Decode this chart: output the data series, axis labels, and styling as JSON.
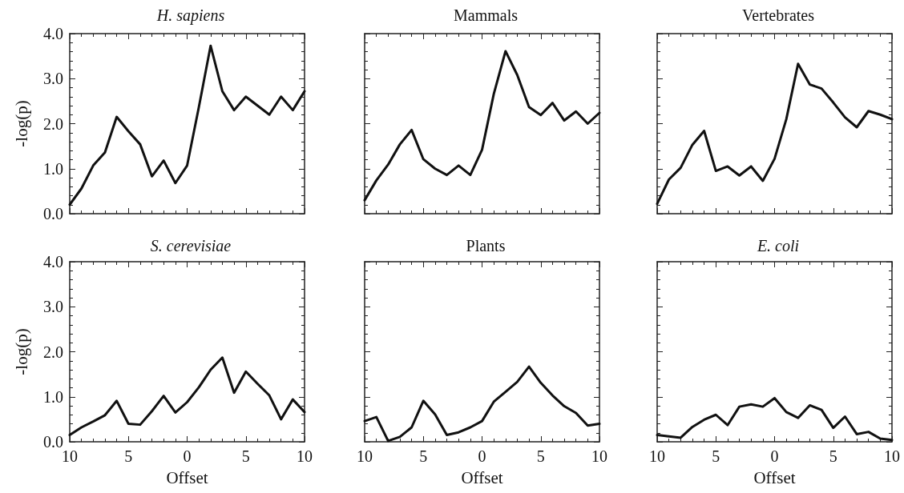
{
  "chart_data": [
    {
      "type": "line",
      "title": "H. sapiens",
      "ylabel": "-log(p)",
      "x": [
        -10,
        -9,
        -8,
        -7,
        -6,
        -5,
        -4,
        -3,
        -2,
        -1,
        0,
        1,
        2,
        3,
        4,
        5,
        6,
        7,
        8,
        9,
        10
      ],
      "series": [
        {
          "color": "#111111",
          "values": [
            0.2,
            0.56,
            1.07,
            1.36,
            2.15,
            1.83,
            1.54,
            0.83,
            1.18,
            0.68,
            1.07,
            2.37,
            3.73,
            2.72,
            2.3,
            2.6,
            2.4,
            2.2,
            2.6,
            2.3,
            2.72
          ]
        }
      ],
      "xlim": [
        -10,
        10
      ],
      "xticks": [
        {
          "value": -10,
          "label": null
        },
        {
          "value": -5,
          "label": null
        },
        {
          "value": 0,
          "label": null
        },
        {
          "value": 5,
          "label": null
        },
        {
          "value": 10,
          "label": null
        }
      ],
      "ylim": [
        0,
        4
      ],
      "yticks": [
        {
          "value": 0,
          "label": "0.0"
        },
        {
          "value": 1,
          "label": "1.0"
        },
        {
          "value": 2,
          "label": "2.0"
        },
        {
          "value": 3,
          "label": "3.0"
        },
        {
          "value": 4,
          "label": "4.0"
        }
      ],
      "tick_labels": "y",
      "marker": "none",
      "line_style": "solid"
    },
    {
      "type": "line",
      "title": "Mammals",
      "x": [
        -10,
        -9,
        -8,
        -7,
        -6,
        -5,
        -4,
        -3,
        -2,
        -1,
        0,
        1,
        2,
        3,
        4,
        5,
        6,
        7,
        8,
        9,
        10
      ],
      "series": [
        {
          "color": "#111111",
          "values": [
            0.3,
            0.74,
            1.09,
            1.54,
            1.86,
            1.21,
            1.0,
            0.86,
            1.07,
            0.86,
            1.42,
            2.66,
            3.61,
            3.08,
            2.37,
            2.19,
            2.46,
            2.07,
            2.27,
            2.0,
            2.24
          ]
        }
      ],
      "xlim": [
        -10,
        10
      ],
      "xticks": [
        {
          "value": -10,
          "label": null
        },
        {
          "value": -5,
          "label": null
        },
        {
          "value": 0,
          "label": null
        },
        {
          "value": 5,
          "label": null
        },
        {
          "value": 10,
          "label": null
        }
      ],
      "ylim": [
        0,
        4
      ],
      "yticks": [
        {
          "value": 0,
          "label": null
        },
        {
          "value": 1,
          "label": null
        },
        {
          "value": 2,
          "label": null
        },
        {
          "value": 3,
          "label": null
        },
        {
          "value": 4,
          "label": null
        }
      ],
      "tick_labels": false,
      "marker": "none",
      "line_style": "solid"
    },
    {
      "type": "line",
      "title": "Vertebrates",
      "x": [
        -10,
        -9,
        -8,
        -7,
        -6,
        -5,
        -4,
        -3,
        -2,
        -1,
        0,
        1,
        2,
        3,
        4,
        5,
        6,
        7,
        8,
        9,
        10
      ],
      "series": [
        {
          "color": "#111111",
          "values": [
            0.22,
            0.76,
            1.02,
            1.53,
            1.84,
            0.95,
            1.05,
            0.85,
            1.05,
            0.73,
            1.22,
            2.1,
            3.33,
            2.87,
            2.78,
            2.47,
            2.14,
            1.92,
            2.28,
            2.2,
            2.1
          ]
        }
      ],
      "xlim": [
        -10,
        10
      ],
      "xticks": [
        {
          "value": -10,
          "label": null
        },
        {
          "value": -5,
          "label": null
        },
        {
          "value": 0,
          "label": null
        },
        {
          "value": 5,
          "label": null
        },
        {
          "value": 10,
          "label": null
        }
      ],
      "ylim": [
        0,
        4
      ],
      "yticks": [
        {
          "value": 0,
          "label": null
        },
        {
          "value": 1,
          "label": null
        },
        {
          "value": 2,
          "label": null
        },
        {
          "value": 3,
          "label": null
        },
        {
          "value": 4,
          "label": null
        }
      ],
      "tick_labels": false,
      "marker": "none",
      "line_style": "solid"
    },
    {
      "type": "line",
      "title": "S. cerevisiae",
      "xlabel": "Offset",
      "ylabel": "-log(p)",
      "x": [
        -10,
        -9,
        -8,
        -7,
        -6,
        -5,
        -4,
        -3,
        -2,
        -1,
        0,
        1,
        2,
        3,
        4,
        5,
        6,
        7,
        8,
        9,
        10
      ],
      "series": [
        {
          "color": "#111111",
          "values": [
            0.15,
            0.32,
            0.45,
            0.59,
            0.91,
            0.4,
            0.38,
            0.68,
            1.02,
            0.65,
            0.88,
            1.21,
            1.6,
            1.87,
            1.09,
            1.56,
            1.29,
            1.03,
            0.5,
            0.94,
            0.66
          ]
        }
      ],
      "xlim": [
        -10,
        10
      ],
      "xticks": [
        {
          "value": -10,
          "label": "10"
        },
        {
          "value": -5,
          "label": "5"
        },
        0,
        5,
        10
      ],
      "ylim": [
        0,
        4
      ],
      "yticks": [
        {
          "value": 0,
          "label": "0.0"
        },
        {
          "value": 1,
          "label": "1.0"
        },
        {
          "value": 2,
          "label": "2.0"
        },
        {
          "value": 3,
          "label": "3.0"
        },
        {
          "value": 4,
          "label": "4.0"
        }
      ],
      "marker": "none",
      "line_style": "solid"
    },
    {
      "type": "line",
      "title": "Plants",
      "xlabel": "Offset",
      "x": [
        -10,
        -9,
        -8,
        -7,
        -6,
        -5,
        -4,
        -3,
        -2,
        -1,
        0,
        1,
        2,
        3,
        4,
        5,
        6,
        7,
        8,
        9,
        10
      ],
      "series": [
        {
          "color": "#111111",
          "values": [
            0.46,
            0.55,
            0.02,
            0.11,
            0.32,
            0.91,
            0.61,
            0.15,
            0.21,
            0.32,
            0.46,
            0.89,
            1.11,
            1.33,
            1.67,
            1.31,
            1.03,
            0.79,
            0.64,
            0.36,
            0.4
          ]
        }
      ],
      "xlim": [
        -10,
        10
      ],
      "xticks": [
        {
          "value": -10,
          "label": "10"
        },
        {
          "value": -5,
          "label": "5"
        },
        0,
        5,
        10
      ],
      "ylim": [
        0,
        4
      ],
      "yticks": [
        {
          "value": 0,
          "label": null
        },
        {
          "value": 1,
          "label": null
        },
        {
          "value": 2,
          "label": null
        },
        {
          "value": 3,
          "label": null
        },
        {
          "value": 4,
          "label": null
        }
      ],
      "tick_labels": "x",
      "marker": "none",
      "line_style": "solid"
    },
    {
      "type": "line",
      "title": "E. coli",
      "xlabel": "Offset",
      "x": [
        -10,
        -9,
        -8,
        -7,
        -6,
        -5,
        -4,
        -3,
        -2,
        -1,
        0,
        1,
        2,
        3,
        4,
        5,
        6,
        7,
        8,
        9,
        10
      ],
      "series": [
        {
          "color": "#111111",
          "values": [
            0.15,
            0.12,
            0.09,
            0.33,
            0.49,
            0.6,
            0.37,
            0.78,
            0.83,
            0.78,
            0.97,
            0.66,
            0.53,
            0.81,
            0.71,
            0.31,
            0.56,
            0.17,
            0.22,
            0.07,
            0.04
          ]
        }
      ],
      "xlim": [
        -10,
        10
      ],
      "xticks": [
        {
          "value": -10,
          "label": "10"
        },
        {
          "value": -5,
          "label": "5"
        },
        0,
        5,
        10
      ],
      "ylim": [
        0,
        4
      ],
      "yticks": [
        {
          "value": 0,
          "label": null
        },
        {
          "value": 1,
          "label": null
        },
        {
          "value": 2,
          "label": null
        },
        {
          "value": 3,
          "label": null
        },
        {
          "value": 4,
          "label": null
        }
      ],
      "tick_labels": "x",
      "marker": "none",
      "line_style": "solid"
    }
  ]
}
